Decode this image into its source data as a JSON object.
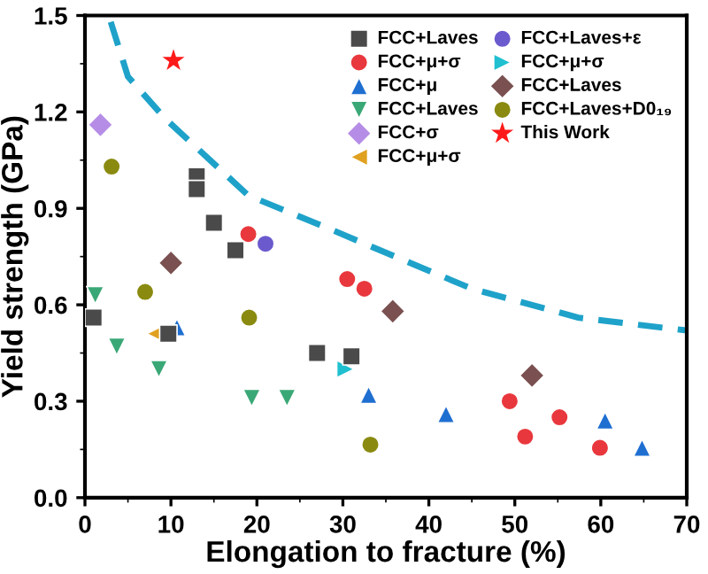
{
  "chart_data": {
    "type": "scatter",
    "xlabel": "Elongation to fracture (%)",
    "ylabel": "Yield strength (GPa)",
    "xlim": [
      0,
      70
    ],
    "ylim": [
      0,
      1.5
    ],
    "xticks": [
      0,
      10,
      20,
      30,
      40,
      50,
      60,
      70
    ],
    "yticks": [
      {
        "value": 0,
        "label": "0.0"
      },
      {
        "value": 0.3,
        "label": "0.3"
      },
      {
        "value": 0.6,
        "label": "0.6"
      },
      {
        "value": 0.9,
        "label": "0.9"
      },
      {
        "value": 1.2,
        "label": "1.2"
      },
      {
        "value": 1.5,
        "label": "1.5"
      }
    ],
    "grid": false,
    "legend": "top right",
    "series": [
      {
        "name": "FCC+Laves",
        "color": "#4a4a4a",
        "marker": "square",
        "x": [
          1,
          13,
          13,
          15,
          17.5,
          9.7,
          27,
          31
        ],
        "values": [
          0.56,
          1.0,
          0.96,
          0.855,
          0.77,
          0.51,
          0.45,
          0.44
        ]
      },
      {
        "name": "FCC+μ+σ",
        "color": "#e8383d",
        "marker": "circle",
        "x": [
          19,
          30.5,
          32.5,
          49.4,
          51.2,
          55.2,
          59.9
        ],
        "values": [
          0.82,
          0.68,
          0.65,
          0.3,
          0.19,
          0.25,
          0.155
        ]
      },
      {
        "name": "FCC+μ",
        "color": "#1f6fd1",
        "marker": "triangle",
        "x": [
          10.7,
          33,
          42,
          60.5,
          64.8
        ],
        "values": [
          0.53,
          0.32,
          0.26,
          0.24,
          0.155
        ]
      },
      {
        "name": "FCC+Laves",
        "color": "#3aa876",
        "marker": "triangle_down",
        "x": [
          1.2,
          3.7,
          8.6,
          19.4,
          23.5
        ],
        "values": [
          0.63,
          0.47,
          0.4,
          0.31,
          0.31
        ]
      },
      {
        "name": "FCC+σ",
        "color": "#b68de6",
        "marker": "diamond",
        "x": [
          1.8
        ],
        "values": [
          1.16
        ]
      },
      {
        "name": "FCC+μ+σ",
        "color": "#e0a020",
        "marker": "triangle_left",
        "x": [
          8.2
        ],
        "values": [
          0.51
        ]
      },
      {
        "name": "FCC+Laves+ε",
        "color": "#6a5acd",
        "marker": "circle",
        "x": [
          21
        ],
        "values": [
          0.79
        ]
      },
      {
        "name": "FCC+μ+σ",
        "color": "#20c0d0",
        "marker": "triangle_right",
        "x": [
          30.3
        ],
        "values": [
          0.4
        ]
      },
      {
        "name": "FCC+Laves",
        "color": "#7a5050",
        "marker": "diamond",
        "x": [
          10,
          35.8,
          52
        ],
        "values": [
          0.73,
          0.58,
          0.38
        ]
      },
      {
        "name": "FCC+Laves+D0₁₉",
        "color": "#8a8a10",
        "marker": "circle",
        "x": [
          3.1,
          7,
          19.1,
          33.2
        ],
        "values": [
          1.03,
          0.64,
          0.56,
          0.165
        ]
      },
      {
        "name": "This Work",
        "color": "#ff1a1a",
        "marker": "star",
        "x": [
          10.3
        ],
        "values": [
          1.36
        ]
      },
      {
        "type": "line",
        "color": "#1fa2c9",
        "line_style": "dashed",
        "marker": "none",
        "x": [
          3,
          5,
          9.3,
          19,
          29,
          33.4,
          45,
          57.4,
          70
        ],
        "values": [
          1.48,
          1.31,
          1.18,
          0.94,
          0.83,
          0.78,
          0.65,
          0.56,
          0.52
        ]
      }
    ]
  }
}
